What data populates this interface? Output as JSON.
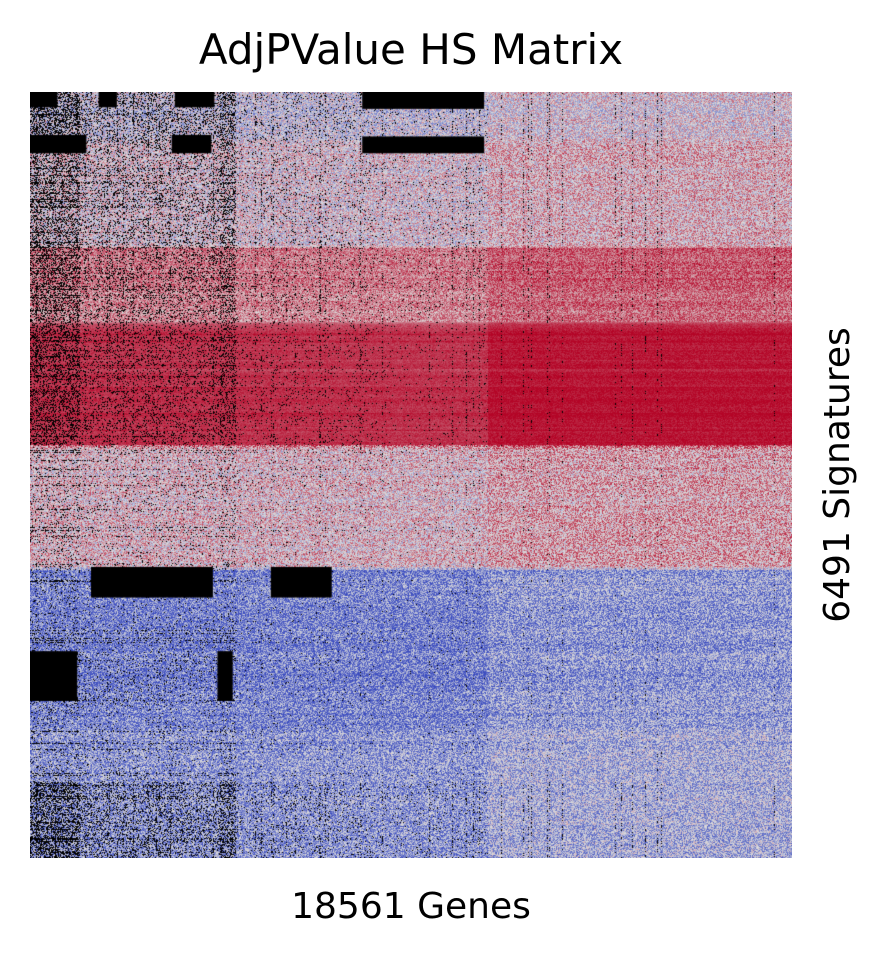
{
  "chart_data": {
    "type": "heatmap",
    "title": "AdjPValue HS Matrix",
    "xlabel": "18561 Genes",
    "ylabel": "6491 Signatures",
    "n_columns": 18561,
    "n_rows": 6491,
    "colormap": "coolwarm",
    "colors": {
      "low": "#3b4cc0",
      "mid": "#dddddd",
      "high": "#b40426",
      "missing": "#000000"
    },
    "grid": false,
    "ticks": false,
    "row_bands": [
      {
        "from": 0.0,
        "to": 0.06,
        "tone": "mixed-blue"
      },
      {
        "from": 0.06,
        "to": 0.2,
        "tone": "mixed"
      },
      {
        "from": 0.2,
        "to": 0.3,
        "tone": "warm"
      },
      {
        "from": 0.3,
        "to": 0.46,
        "tone": "high"
      },
      {
        "from": 0.46,
        "to": 0.62,
        "tone": "mixed-warm"
      },
      {
        "from": 0.62,
        "to": 0.83,
        "tone": "cool"
      },
      {
        "from": 0.83,
        "to": 1.0,
        "tone": "mixed-cool"
      }
    ]
  }
}
